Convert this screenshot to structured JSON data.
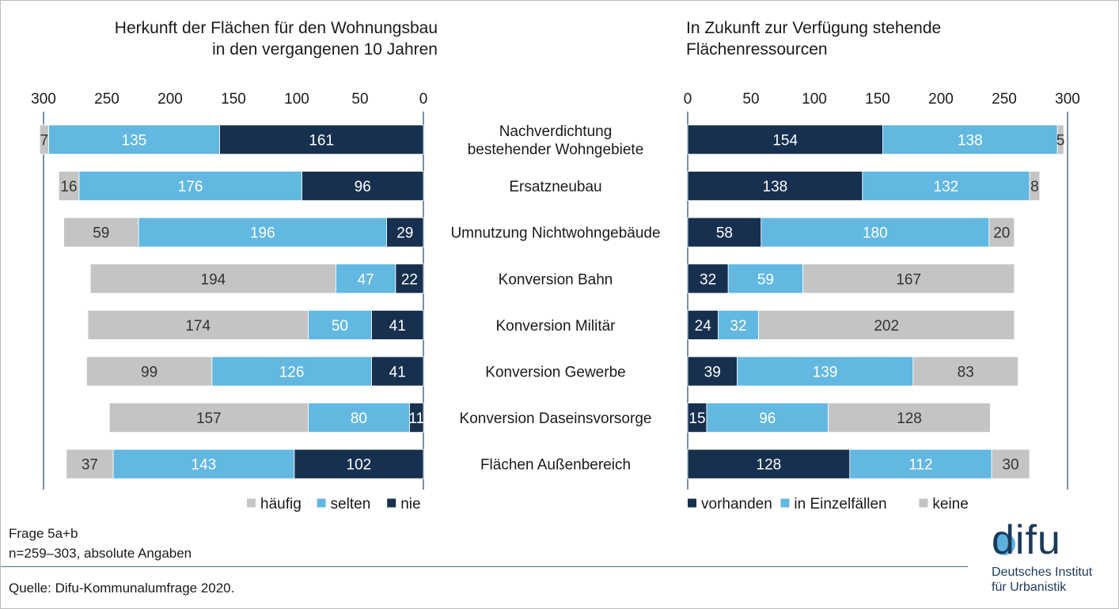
{
  "chart_data": [
    {
      "type": "bar",
      "orientation": "horizontal",
      "stacked": true,
      "x_reversed": true,
      "title": "Herkunft der Flächen für den Wohnungsbau\nin den vergangenen 10 Jahren",
      "xlim": [
        0,
        300
      ],
      "xticks": [
        300,
        250,
        200,
        150,
        100,
        50,
        0
      ],
      "categories": [
        "Nachverdichtung\nbestehender Wohngebiete",
        "Ersatzneubau",
        "Umnutzung Nichtwohngebäude",
        "Konversion Bahn",
        "Konversion Militär",
        "Konversion Gewerbe",
        "Konversion Daseinsvorsorge",
        "Flächen Außenbereich"
      ],
      "series": [
        {
          "name": "nie",
          "color": "#17304f",
          "label_color": "#ffffff",
          "values": [
            161,
            96,
            29,
            22,
            41,
            41,
            11,
            102
          ]
        },
        {
          "name": "selten",
          "color": "#62b8e0",
          "label_color": "#ffffff",
          "values": [
            135,
            176,
            196,
            47,
            50,
            126,
            80,
            143
          ]
        },
        {
          "name": "häufig",
          "color": "#c4c4c4",
          "label_color": "#333333",
          "values": [
            7,
            16,
            59,
            194,
            174,
            99,
            157,
            37
          ]
        }
      ],
      "legend": [
        "häufig",
        "selten",
        "nie"
      ],
      "legend_position": "bottom-right",
      "grid": false
    },
    {
      "type": "bar",
      "orientation": "horizontal",
      "stacked": true,
      "title": "In Zukunft zur Verfügung stehende\nFlächenressourcen",
      "xlim": [
        0,
        300
      ],
      "xticks": [
        0,
        50,
        100,
        150,
        200,
        250,
        300
      ],
      "categories": [
        "Nachverdichtung\nbestehender Wohngebiete",
        "Ersatzneubau",
        "Umnutzung Nichtwohngebäude",
        "Konversion Bahn",
        "Konversion Militär",
        "Konversion Gewerbe",
        "Konversion Daseinsvorsorge",
        "Flächen Außenbereich"
      ],
      "series": [
        {
          "name": "vorhanden",
          "color": "#17304f",
          "label_color": "#ffffff",
          "values": [
            154,
            138,
            58,
            32,
            24,
            39,
            15,
            128
          ]
        },
        {
          "name": "in Einzelfällen",
          "color": "#62b8e0",
          "label_color": "#ffffff",
          "values": [
            138,
            132,
            180,
            59,
            32,
            139,
            96,
            112
          ]
        },
        {
          "name": "keine",
          "color": "#c4c4c4",
          "label_color": "#333333",
          "values": [
            5,
            8,
            20,
            167,
            202,
            83,
            128,
            30
          ]
        }
      ],
      "legend": [
        "vorhanden",
        "in Einzelfällen",
        "keine"
      ],
      "legend_position": "bottom-left",
      "grid": false
    }
  ],
  "footer": {
    "note1": "Frage 5a+b",
    "note2": "n=259–303, absolute Angaben",
    "source": "Quelle: Difu-Kommunalumfrage 2020."
  },
  "logo": {
    "word": "difu",
    "line1": "Deutsches Institut",
    "line2": "für Urbanistik"
  },
  "colors": {
    "dark_blue": "#17304f",
    "light_blue": "#62b8e0",
    "grey": "#c4c4c4",
    "axis": "#4a6f8c"
  }
}
